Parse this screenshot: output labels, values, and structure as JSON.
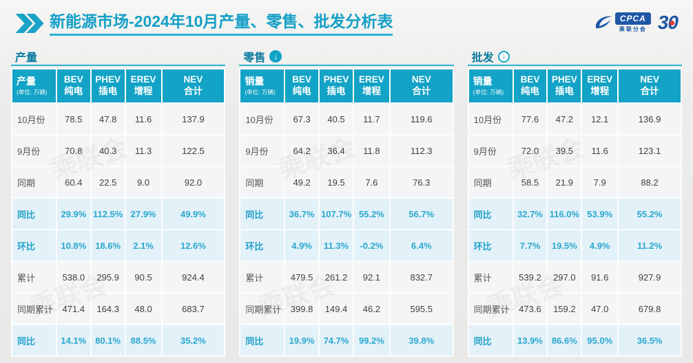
{
  "header": {
    "title_bold": "新能源市场",
    "title_rest": "-2024年10月产量、零售、批发分析表",
    "cpca_label": "CPCA",
    "cpca_subtitle": "乘联分会",
    "anniversary_label": "30"
  },
  "watermark_text": "乘联会",
  "colors": {
    "accent_teal": "#12a3c6",
    "title_text": "#149fc6",
    "section_title_text": "#0b7c9e",
    "highlight_row_bg": "#e3f1f9",
    "highlight_text": "#2aa8ce",
    "header_cell_bg": "#12a3c6",
    "logo_blue": "#1e57a6",
    "logo_red": "#e03a2f"
  },
  "chart_data": [
    {
      "type": "table",
      "section_title": "产量",
      "arrow": "none",
      "label_header": "产量",
      "unit_note": "(单位: 万辆)",
      "col_headers": [
        [
          "BEV",
          "纯电"
        ],
        [
          "PHEV",
          "插电"
        ],
        [
          "EREV",
          "增程"
        ],
        [
          "NEV",
          "合计"
        ]
      ],
      "rows": [
        {
          "label": "10月份",
          "values": [
            "78.5",
            "47.8",
            "11.6",
            "137.9"
          ],
          "highlight": false
        },
        {
          "label": "9月份",
          "values": [
            "70.8",
            "40.3",
            "11.3",
            "122.5"
          ],
          "highlight": false
        },
        {
          "label": "同期",
          "values": [
            "60.4",
            "22.5",
            "9.0",
            "92.0"
          ],
          "highlight": false
        },
        {
          "label": "同比",
          "values": [
            "29.9%",
            "112.5%",
            "27.9%",
            "49.9%"
          ],
          "highlight": true
        },
        {
          "label": "环比",
          "values": [
            "10.8%",
            "18.6%",
            "2.1%",
            "12.6%"
          ],
          "highlight": true
        },
        {
          "label": "累计",
          "values": [
            "538.0",
            "295.9",
            "90.5",
            "924.4"
          ],
          "highlight": false
        },
        {
          "label": "同期累计",
          "values": [
            "471.4",
            "164.3",
            "48.0",
            "683.7"
          ],
          "highlight": false
        },
        {
          "label": "同比",
          "values": [
            "14.1%",
            "80.1%",
            "88.5%",
            "35.2%"
          ],
          "highlight": true
        }
      ]
    },
    {
      "type": "table",
      "section_title": "零售",
      "arrow": "filled",
      "label_header": "销量",
      "unit_note": "(单位: 万辆)",
      "col_headers": [
        [
          "BEV",
          "纯电"
        ],
        [
          "PHEV",
          "插电"
        ],
        [
          "EREV",
          "增程"
        ],
        [
          "NEV",
          "合计"
        ]
      ],
      "rows": [
        {
          "label": "10月份",
          "values": [
            "67.3",
            "40.5",
            "11.7",
            "119.6"
          ],
          "highlight": false
        },
        {
          "label": "9月份",
          "values": [
            "64.2",
            "36.4",
            "11.8",
            "112.3"
          ],
          "highlight": false
        },
        {
          "label": "同期",
          "values": [
            "49.2",
            "19.5",
            "7.6",
            "76.3"
          ],
          "highlight": false
        },
        {
          "label": "同比",
          "values": [
            "36.7%",
            "107.7%",
            "55.2%",
            "56.7%"
          ],
          "highlight": true
        },
        {
          "label": "环比",
          "values": [
            "4.9%",
            "11.3%",
            "-0.2%",
            "6.4%"
          ],
          "highlight": true
        },
        {
          "label": "累计",
          "values": [
            "479.5",
            "261.2",
            "92.1",
            "832.7"
          ],
          "highlight": false
        },
        {
          "label": "同期累计",
          "values": [
            "399.8",
            "149.4",
            "46.2",
            "595.5"
          ],
          "highlight": false
        },
        {
          "label": "同比",
          "values": [
            "19.9%",
            "74.7%",
            "99.2%",
            "39.8%"
          ],
          "highlight": true
        }
      ]
    },
    {
      "type": "table",
      "section_title": "批发",
      "arrow": "outline",
      "label_header": "销量",
      "unit_note": "(单位: 万辆)",
      "col_headers": [
        [
          "BEV",
          "纯电"
        ],
        [
          "PHEV",
          "插电"
        ],
        [
          "EREV",
          "增程"
        ],
        [
          "NEV",
          "合计"
        ]
      ],
      "rows": [
        {
          "label": "10月份",
          "values": [
            "77.6",
            "47.2",
            "12.1",
            "136.9"
          ],
          "highlight": false
        },
        {
          "label": "9月份",
          "values": [
            "72.0",
            "39.5",
            "11.6",
            "123.1"
          ],
          "highlight": false
        },
        {
          "label": "同期",
          "values": [
            "58.5",
            "21.9",
            "7.9",
            "88.2"
          ],
          "highlight": false
        },
        {
          "label": "同比",
          "values": [
            "32.7%",
            "116.0%",
            "53.9%",
            "55.2%"
          ],
          "highlight": true
        },
        {
          "label": "环比",
          "values": [
            "7.7%",
            "19.5%",
            "4.9%",
            "11.2%"
          ],
          "highlight": true
        },
        {
          "label": "累计",
          "values": [
            "539.2",
            "297.0",
            "91.6",
            "927.9"
          ],
          "highlight": false
        },
        {
          "label": "同期累计",
          "values": [
            "473.6",
            "159.2",
            "47.0",
            "679.8"
          ],
          "highlight": false
        },
        {
          "label": "同比",
          "values": [
            "13.9%",
            "86.6%",
            "95.0%",
            "36.5%"
          ],
          "highlight": true
        }
      ]
    }
  ]
}
